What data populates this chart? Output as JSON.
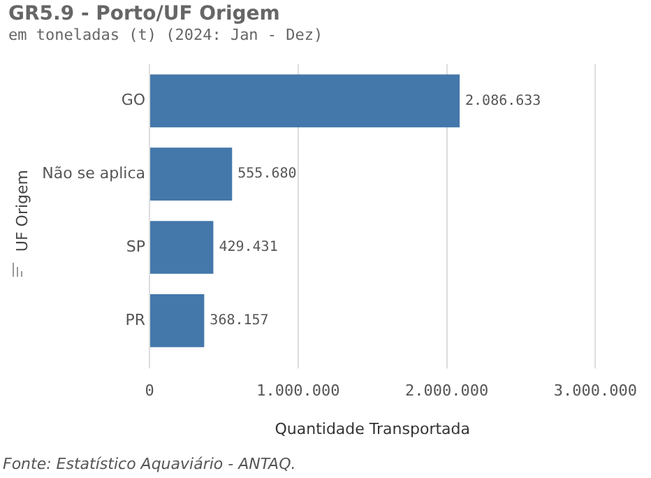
{
  "chart_data": {
    "type": "bar",
    "orientation": "horizontal",
    "title": "GR5.9 - Porto/UF Origem",
    "subtitle": "em toneladas (t) (2024: Jan - Dez)",
    "xlabel": "Quantidade Transportada",
    "ylabel": "UF Origem",
    "categories": [
      "GO",
      "Não se aplica",
      "SP",
      "PR"
    ],
    "values": [
      2086633,
      555680,
      429431,
      368157
    ],
    "color": "#4477aa",
    "value_labels": [
      "2.086.633",
      "555.680",
      "429.431",
      "368.157"
    ],
    "xlim": [
      0,
      3000000
    ],
    "xticks": [
      {
        "value": 0,
        "label": "0"
      },
      {
        "value": 1000000,
        "label": "1.000.000"
      },
      {
        "value": 2000000,
        "label": "2.000.000"
      },
      {
        "value": 3000000,
        "label": "3.000.000"
      }
    ],
    "grid": "x",
    "legend": false,
    "annotations": [
      "Fonte: Estatístico Aquaviário - ANTAQ."
    ]
  }
}
